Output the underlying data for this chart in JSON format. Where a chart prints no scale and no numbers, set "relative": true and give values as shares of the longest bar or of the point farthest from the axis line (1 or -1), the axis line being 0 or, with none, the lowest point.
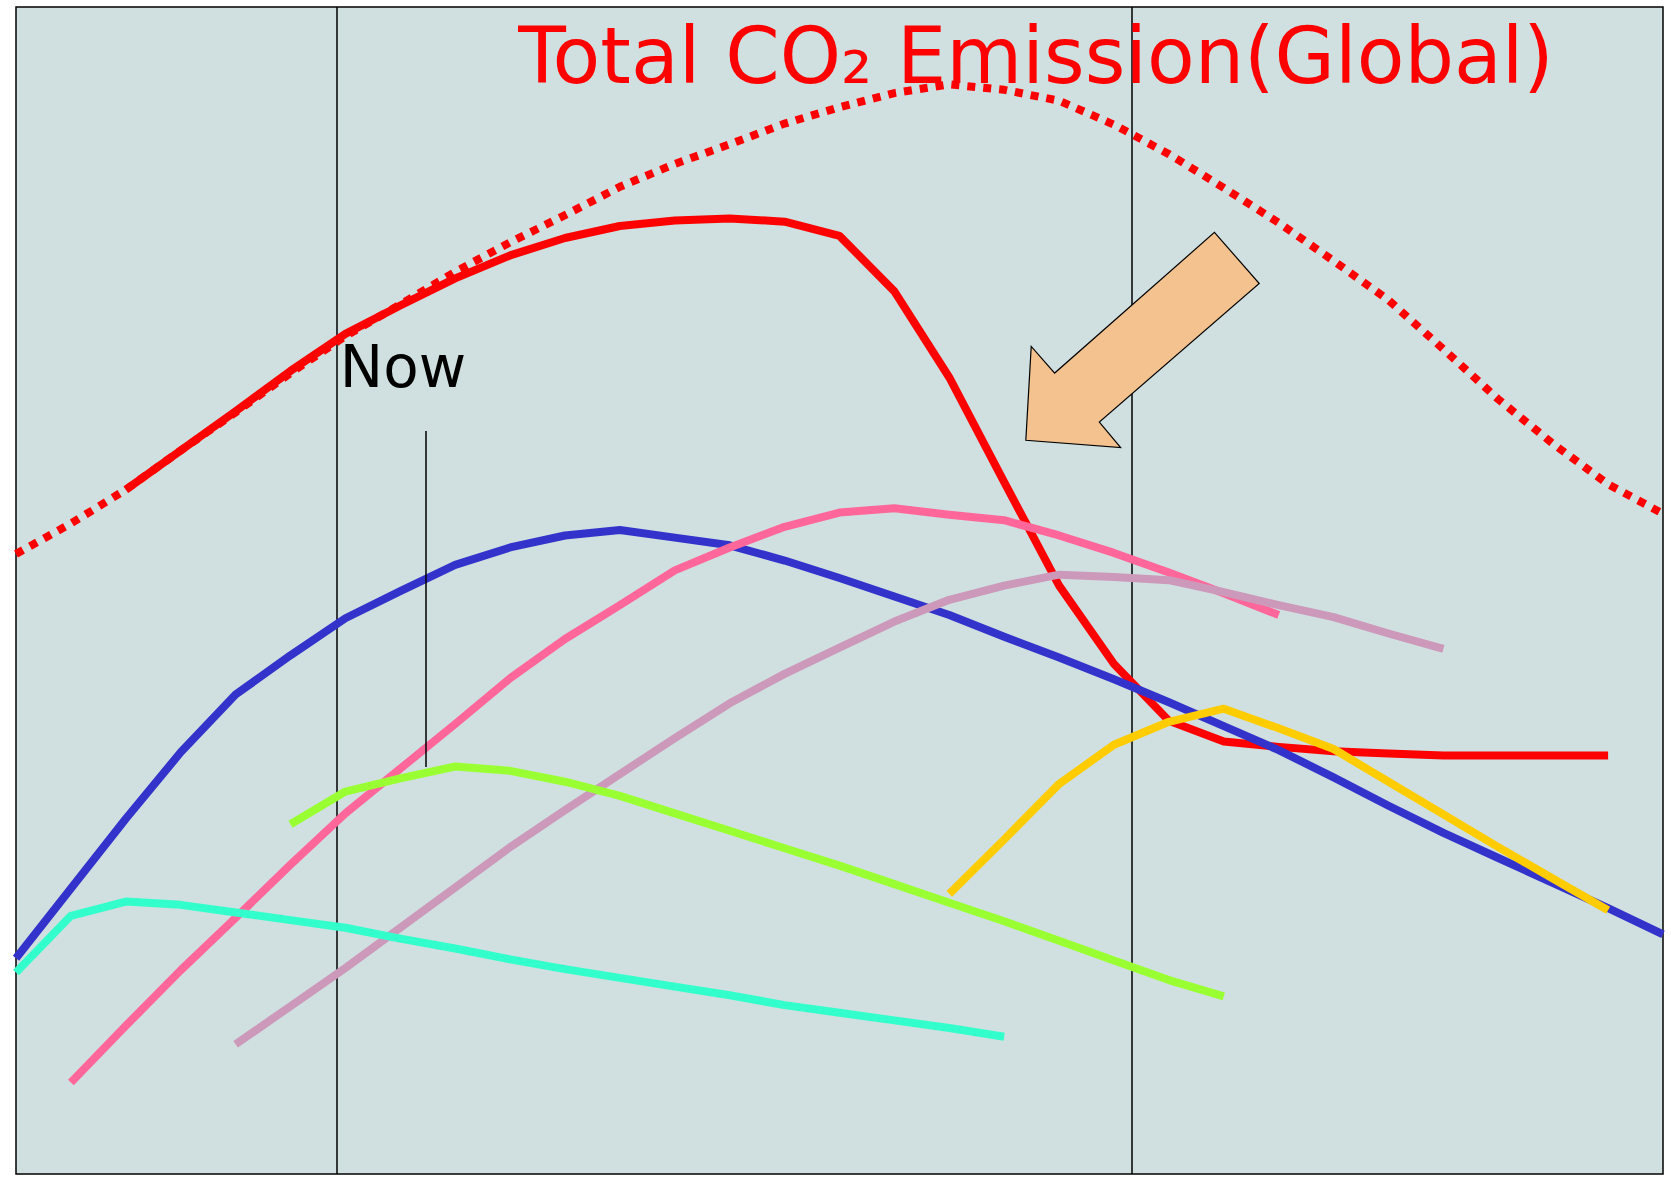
{
  "chart_data": {
    "type": "line",
    "title": "Total CO₂ Emission(Global)",
    "relative": true,
    "categories": [
      null,
      null,
      null,
      null,
      null,
      null,
      null,
      null,
      null,
      null,
      null,
      null,
      null,
      null,
      null,
      null,
      null,
      null,
      null,
      null,
      null,
      null,
      null,
      null,
      null,
      null,
      null,
      null,
      null,
      null,
      null
    ],
    "series": [
      {
        "color": "#ff0000",
        "line_style": "dotted",
        "values": [
          0.569,
          0.597,
          0.628,
          0.664,
          0.699,
          0.735,
          0.769,
          0.798,
          0.828,
          0.855,
          0.88,
          0.906,
          0.927,
          0.945,
          0.964,
          0.979,
          0.992,
          1.0,
          0.995,
          0.985,
          0.963,
          0.936,
          0.905,
          0.873,
          0.838,
          0.802,
          0.757,
          0.711,
          0.67,
          0.633,
          0.606
        ]
      },
      {
        "color": "#ff0000",
        "line_style": "solid",
        "values": [
          null,
          null,
          0.628,
          0.664,
          0.7,
          0.737,
          0.771,
          0.797,
          0.822,
          0.843,
          0.859,
          0.87,
          0.875,
          0.877,
          0.874,
          0.861,
          0.81,
          0.731,
          0.635,
          0.54,
          0.468,
          0.416,
          0.397,
          0.392,
          0.388,
          0.386,
          0.384,
          0.384,
          0.384,
          0.384,
          null
        ]
      },
      {
        "color": "#3333cc",
        "line_style": "solid",
        "values": [
          0.198,
          0.262,
          0.326,
          0.387,
          0.44,
          0.476,
          0.51,
          0.535,
          0.559,
          0.575,
          0.586,
          0.591,
          0.584,
          0.577,
          0.563,
          0.547,
          0.53,
          0.513,
          0.493,
          0.474,
          0.454,
          0.433,
          0.411,
          0.389,
          0.364,
          0.338,
          0.313,
          0.29,
          0.267,
          0.244,
          0.22
        ]
      },
      {
        "color": "#ff6699",
        "line_style": "solid",
        "values": [
          null,
          0.084,
          0.136,
          0.187,
          0.235,
          0.284,
          0.331,
          0.372,
          0.413,
          0.455,
          0.491,
          0.522,
          0.554,
          0.575,
          0.594,
          0.607,
          0.611,
          0.605,
          0.6,
          0.586,
          0.57,
          0.552,
          0.533,
          0.513,
          null,
          null,
          null,
          null,
          null,
          null,
          null
        ]
      },
      {
        "color": "#cc99bb",
        "line_style": "solid",
        "values": [
          null,
          null,
          null,
          null,
          0.119,
          0.154,
          0.189,
          0.226,
          0.263,
          0.3,
          0.334,
          0.367,
          0.4,
          0.432,
          0.459,
          0.483,
          0.507,
          0.527,
          0.54,
          0.55,
          0.548,
          0.545,
          0.534,
          0.522,
          0.511,
          0.496,
          0.482,
          null,
          null,
          null,
          null
        ]
      },
      {
        "color": "#99ff33",
        "line_style": "solid",
        "values": [
          null,
          null,
          null,
          null,
          null,
          0.321,
          0.351,
          0.363,
          0.374,
          0.37,
          0.36,
          0.347,
          0.331,
          0.315,
          0.299,
          0.283,
          0.266,
          0.249,
          0.232,
          0.214,
          0.196,
          0.178,
          0.163,
          null,
          null,
          null,
          null,
          null,
          null,
          null,
          null
        ]
      },
      {
        "color": "#33ffcc",
        "line_style": "solid",
        "values": [
          0.185,
          0.237,
          0.25,
          0.247,
          0.24,
          0.233,
          0.226,
          0.216,
          0.207,
          0.197,
          0.188,
          0.18,
          0.172,
          0.164,
          0.155,
          0.148,
          0.141,
          0.134,
          0.126,
          null,
          null,
          null,
          null,
          null,
          null,
          null,
          null,
          null,
          null,
          null,
          null
        ]
      },
      {
        "color": "#ffcc00",
        "line_style": "solid",
        "values": [
          null,
          null,
          null,
          null,
          null,
          null,
          null,
          null,
          null,
          null,
          null,
          null,
          null,
          null,
          null,
          null,
          null,
          0.257,
          0.307,
          0.358,
          0.394,
          0.415,
          0.427,
          0.409,
          0.39,
          0.36,
          0.33,
          0.3,
          0.271,
          0.242,
          null
        ]
      }
    ],
    "annotations": [
      "Now"
    ]
  }
}
